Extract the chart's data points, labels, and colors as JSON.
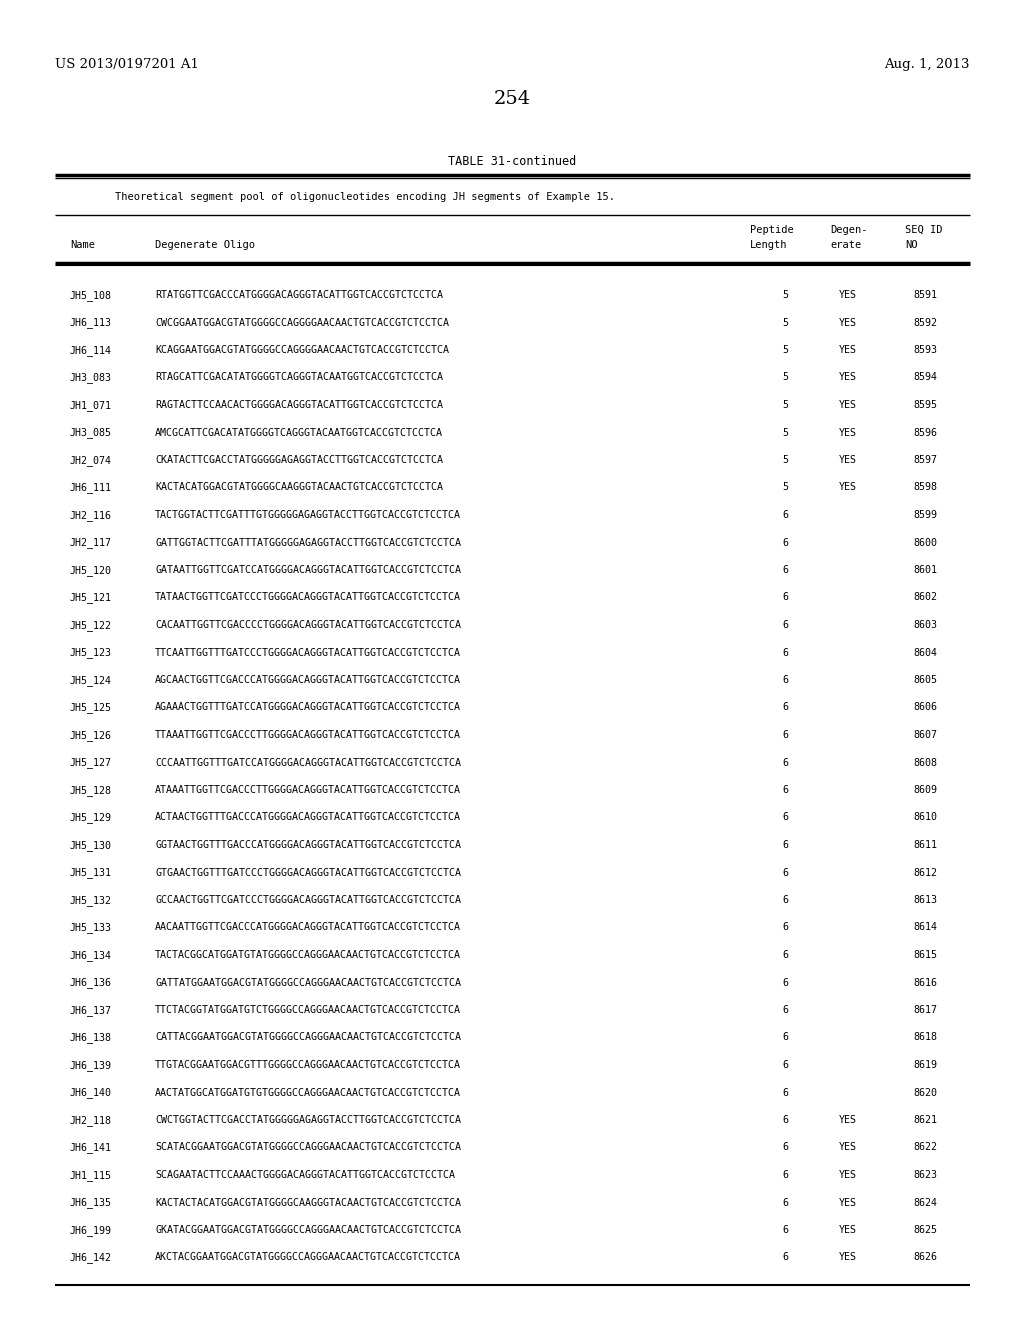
{
  "patent_number": "US 2013/0197201 A1",
  "date": "Aug. 1, 2013",
  "page_number": "254",
  "table_title": "TABLE 31-continued",
  "table_subtitle": "Theoretical segment pool of oligonucleotides encoding JH segments of Example 15.",
  "rows": [
    [
      "JH5_108",
      "RTATGGTTCGACCCATGGGGACAGGGTACATTGGTCACCGTCTCCTCA",
      "5",
      "YES",
      "8591"
    ],
    [
      "JH6_113",
      "CWCGGAATGGACGTATGGGGCCAGGGGAACAACTGTCACCGTCTCCTCA",
      "5",
      "YES",
      "8592"
    ],
    [
      "JH6_114",
      "KCAGGAATGGACGTATGGGGCCAGGGGAACAACTGTCACCGTCTCCTCA",
      "5",
      "YES",
      "8593"
    ],
    [
      "JH3_083",
      "RTAGCATTCGACATATGGGGTCAGGGTACAATGGTCACCGTCTCCTCA",
      "5",
      "YES",
      "8594"
    ],
    [
      "JH1_071",
      "RAGTACTTCCAACACTGGGGACAGGGTACATTGGTCACCGTCTCCTCA",
      "5",
      "YES",
      "8595"
    ],
    [
      "JH3_085",
      "AMCGCATTCGACATATGGGGTCAGGGTACAATGGTCACCGTCTCCTCA",
      "5",
      "YES",
      "8596"
    ],
    [
      "JH2_074",
      "CKATACTTCGACCTATGGGGGAGAGGTACCTTGGTCACCGTCTCCTCA",
      "5",
      "YES",
      "8597"
    ],
    [
      "JH6_111",
      "KACTACATGGACGTATGGGGCAAGGGTACAACTGTCACCGTCTCCTCA",
      "5",
      "YES",
      "8598"
    ],
    [
      "JH2_116",
      "TACTGGTACTTCGATTTGTGGGGGAGAGGTACCTTGGTCACCGTCTCCTCA",
      "6",
      "",
      "8599"
    ],
    [
      "JH2_117",
      "GATTGGTACTTCGATTTATGGGGGAGAGGTACCTTGGTCACCGTCTCCTCA",
      "6",
      "",
      "8600"
    ],
    [
      "JH5_120",
      "GATAATTGGTTCGATCCATGGGGACAGGGTACATTGGTCACCGTCTCCTCA",
      "6",
      "",
      "8601"
    ],
    [
      "JH5_121",
      "TATAACTGGTTCGATCCCTGGGGACAGGGTACATTGGTCACCGTCTCCTCA",
      "6",
      "",
      "8602"
    ],
    [
      "JH5_122",
      "CACAATTGGTTCGACCCCTGGGGACAGGGTACATTGGTCACCGTCTCCTCA",
      "6",
      "",
      "8603"
    ],
    [
      "JH5_123",
      "TTCAATTGGTTTGATCCCTGGGGACAGGGTACATTGGTCACCGTCTCCTCA",
      "6",
      "",
      "8604"
    ],
    [
      "JH5_124",
      "AGCAACTGGTTCGACCCATGGGGACAGGGTACATTGGTCACCGTCTCCTCA",
      "6",
      "",
      "8605"
    ],
    [
      "JH5_125",
      "AGAAACTGGTTTGATCCATGGGGACAGGGTACATTGGTCACCGTCTCCTCA",
      "6",
      "",
      "8606"
    ],
    [
      "JH5_126",
      "TTAAATTGGTTCGACCCTTGGGGACAGGGTACATTGGTCACCGTCTCCTCA",
      "6",
      "",
      "8607"
    ],
    [
      "JH5_127",
      "CCCAATTGGTTTGATCCATGGGGACAGGGTACATTGGTCACCGTCTCCTCA",
      "6",
      "",
      "8608"
    ],
    [
      "JH5_128",
      "ATAAATTGGTTCGACCCTTGGGGACAGGGTACATTGGTCACCGTCTCCTCA",
      "6",
      "",
      "8609"
    ],
    [
      "JH5_129",
      "ACTAACTGGTTTGACCCATGGGGACAGGGTACATTGGTCACCGTCTCCTCA",
      "6",
      "",
      "8610"
    ],
    [
      "JH5_130",
      "GGTAACTGGTTTGACCCATGGGGACAGGGTACATTGGTCACCGTCTCCTCA",
      "6",
      "",
      "8611"
    ],
    [
      "JH5_131",
      "GTGAACTGGTTTGATCCCTGGGGACAGGGTACATTGGTCACCGTCTCCTCA",
      "6",
      "",
      "8612"
    ],
    [
      "JH5_132",
      "GCCAACTGGTTCGATCCCTGGGGACAGGGTACATTGGTCACCGTCTCCTCA",
      "6",
      "",
      "8613"
    ],
    [
      "JH5_133",
      "AACAATTGGTTCGACCCATGGGGACAGGGTACATTGGTCACCGTCTCCTCA",
      "6",
      "",
      "8614"
    ],
    [
      "JH6_134",
      "TACTACGGCATGGATGTATGGGGCCAGGGAACAACTGTCACCGTCTCCTCA",
      "6",
      "",
      "8615"
    ],
    [
      "JH6_136",
      "GATTATGGAATGGACGTATGGGGCCAGGGAACAACTGTCACCGTCTCCTCA",
      "6",
      "",
      "8616"
    ],
    [
      "JH6_137",
      "TTCTACGGTATGGATGTCTGGGGCCAGGGAACAACTGTCACCGTCTCCTCA",
      "6",
      "",
      "8617"
    ],
    [
      "JH6_138",
      "CATTACGGAATGGACGTATGGGGCCAGGGAACAACTGTCACCGTCTCCTCA",
      "6",
      "",
      "8618"
    ],
    [
      "JH6_139",
      "TTGTACGGAATGGACGTTTGGGGCCAGGGAACAACTGTCACCGTCTCCTCA",
      "6",
      "",
      "8619"
    ],
    [
      "JH6_140",
      "AACTATGGCATGGATGTGTGGGGCCAGGGAACAACTGTCACCGTCTCCTCA",
      "6",
      "",
      "8620"
    ],
    [
      "JH2_118",
      "CWCTGGTACTTCGACCTATGGGGGAGAGGTACCTTGGTCACCGTCTCCTCA",
      "6",
      "YES",
      "8621"
    ],
    [
      "JH6_141",
      "SCATACGGAATGGACGTATGGGGCCAGGGAACAACTGTCACCGTCTCCTCA",
      "6",
      "YES",
      "8622"
    ],
    [
      "JH1_115",
      "SCAGAATACTTCCAAACTGGGGACAGGGTACATTGGTCACCGTCTCCTCA",
      "6",
      "YES",
      "8623"
    ],
    [
      "JH6_135",
      "KACTACTACATGGACGTATGGGGCAAGGGTACAACTGTCACCGTCTCCTCA",
      "6",
      "YES",
      "8624"
    ],
    [
      "JH6_199",
      "GKATACGGAATGGACGTATGGGGCCAGGGAACAACTGTCACCGTCTCCTCA",
      "6",
      "YES",
      "8625"
    ],
    [
      "JH6_142",
      "AKCTACGGAATGGACGTATGGGGCCAGGGAACAACTGTCACCGTCTCCTCA",
      "6",
      "YES",
      "8626"
    ]
  ]
}
